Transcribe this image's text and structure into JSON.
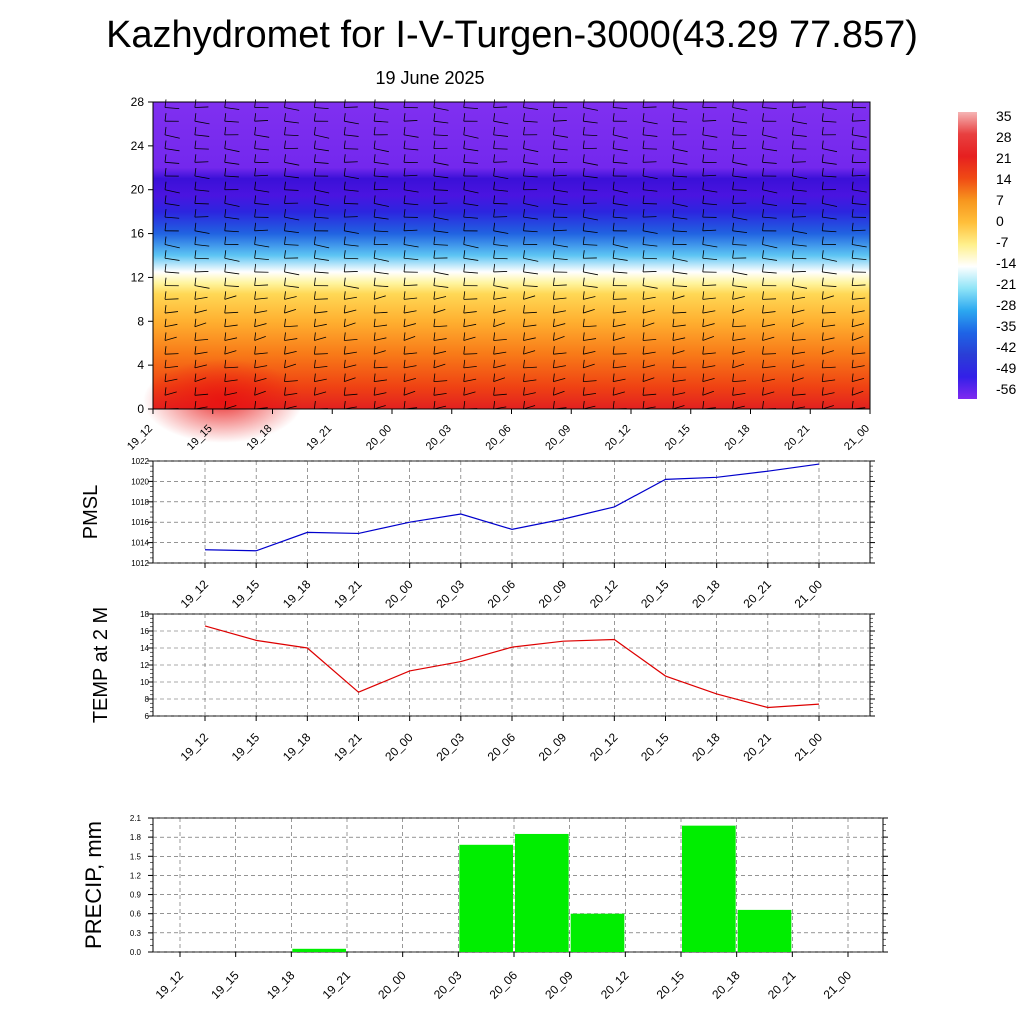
{
  "title": "Kazhydromet for I-V-Turgen-3000(43.29 77.857)",
  "subtitle": "19 June 2025",
  "colors": {
    "pmsl_line": "#0000cc",
    "temp_line": "#dd0000",
    "precip_bar": "#00ee00"
  },
  "chart_data": [
    {
      "type": "heatmap",
      "name": "cross-section",
      "x_categories": [
        "19_12",
        "19_15",
        "19_18",
        "19_21",
        "20_00",
        "20_03",
        "20_06",
        "20_09",
        "20_12",
        "20_15",
        "20_18",
        "20_21",
        "21_00"
      ],
      "y_ticks": [
        0,
        4,
        8,
        12,
        16,
        20,
        24,
        28
      ],
      "ylim": [
        0,
        28
      ],
      "colorbar_labels": [
        "35",
        "28",
        "21",
        "14",
        "7",
        "0",
        "-7",
        "-14",
        "-21",
        "-28",
        "-35",
        "-42",
        "-49",
        "-56"
      ],
      "colorbar_colors": [
        "#f5b5b5",
        "#e84040",
        "#e62020",
        "#f04a14",
        "#f7961e",
        "#ffbf3a",
        "#fff08c",
        "#ffffff",
        "#8fe4f7",
        "#2ca8f0",
        "#1e64e6",
        "#2a3ed6",
        "#3320e8",
        "#7f2af0"
      ],
      "profile": [
        {
          "level": 0,
          "value": 30
        },
        {
          "level": 2,
          "value": 22
        },
        {
          "level": 5,
          "value": 12
        },
        {
          "level": 8,
          "value": 5
        },
        {
          "level": 10.5,
          "value": 0
        },
        {
          "level": 11.5,
          "value": -7
        },
        {
          "level": 12.5,
          "value": -14
        },
        {
          "level": 14,
          "value": -25
        },
        {
          "level": 16,
          "value": -38
        },
        {
          "level": 18,
          "value": -50
        },
        {
          "level": 19.5,
          "value": -58
        },
        {
          "level": 21,
          "value": -56
        },
        {
          "level": 22,
          "value": -64
        },
        {
          "level": 28,
          "value": -66
        }
      ],
      "wind_barbs": true
    },
    {
      "type": "line",
      "name": "pmsl",
      "ylabel": "PMSL",
      "categories": [
        "19_12",
        "19_15",
        "19_18",
        "19_21",
        "20_00",
        "20_03",
        "20_06",
        "20_09",
        "20_12",
        "20_15",
        "20_18",
        "20_21",
        "21_00"
      ],
      "values": [
        1013.3,
        1013.2,
        1015.0,
        1014.9,
        1016.0,
        1016.8,
        1015.3,
        1016.3,
        1017.5,
        1020.2,
        1020.4,
        1021.0,
        1021.7
      ],
      "ylim": [
        1012,
        1022
      ],
      "y_ticks": [
        1012,
        1014,
        1016,
        1018,
        1020,
        1022
      ],
      "grid": true
    },
    {
      "type": "line",
      "name": "temp",
      "ylabel": "TEMP at 2 M",
      "categories": [
        "19_12",
        "19_15",
        "19_18",
        "19_21",
        "20_00",
        "20_03",
        "20_06",
        "20_09",
        "20_12",
        "20_15",
        "20_18",
        "20_21",
        "21_00"
      ],
      "values": [
        16.6,
        14.9,
        14.0,
        8.8,
        11.3,
        12.4,
        14.1,
        14.8,
        15.0,
        10.7,
        8.6,
        7.0,
        7.4
      ],
      "ylim": [
        6,
        18
      ],
      "y_ticks": [
        6,
        8,
        10,
        12,
        14,
        16,
        18
      ],
      "grid": true
    },
    {
      "type": "bar",
      "name": "precip",
      "ylabel": "PRECIP, mm",
      "categories": [
        "19_12",
        "19_15",
        "19_18",
        "19_21",
        "20_00",
        "20_03",
        "20_06",
        "20_09",
        "20_12",
        "20_15",
        "20_18",
        "20_21",
        "21_00"
      ],
      "values": [
        0,
        0,
        0.05,
        0,
        0,
        1.68,
        1.85,
        0.6,
        0,
        1.98,
        0.66,
        0,
        0
      ],
      "ylim": [
        0,
        2.1
      ],
      "y_ticks": [
        "0.0",
        "0.3",
        "0.6",
        "0.9",
        "1.2",
        "1.5",
        "1.8",
        "2.1"
      ],
      "grid": true
    }
  ]
}
